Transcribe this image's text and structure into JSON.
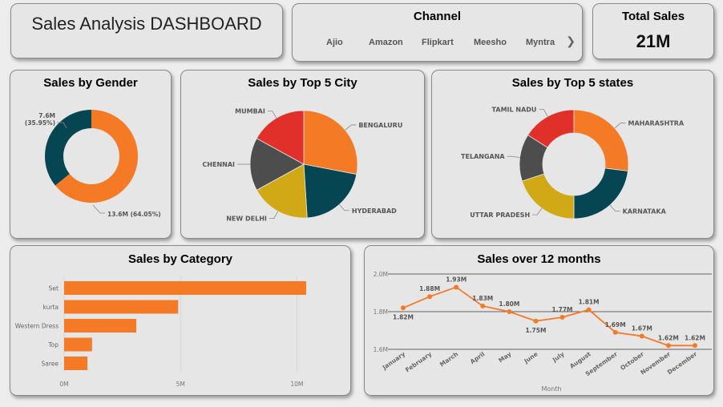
{
  "header": {
    "title": "Sales Analysis DASHBOARD"
  },
  "channel": {
    "title": "Channel",
    "items": [
      "Ajio",
      "Amazon",
      "Flipkart",
      "Meesho",
      "Myntra"
    ],
    "next_icon": "chevron-right-icon"
  },
  "total_sales": {
    "title": "Total Sales",
    "value": "21M"
  },
  "colors": {
    "orange": "#f47a25",
    "teal": "#064652",
    "red": "#e1302a",
    "gray": "#4d4d4d",
    "mustard": "#d1a917"
  },
  "gender": {
    "title": "Sales by Gender",
    "chart_data": {
      "type": "pie",
      "donut": true,
      "slices": [
        {
          "value": 13.6,
          "color": "#f47a25",
          "label": "13.6M (64.05%)"
        },
        {
          "value": 7.6,
          "color": "#064652",
          "label": "7.6M (35.95%)"
        }
      ]
    }
  },
  "city": {
    "title": "Sales by Top 5 City",
    "chart_data": {
      "type": "pie",
      "slices": [
        {
          "name": "BENGALURU",
          "value": 28,
          "color": "#f47a25"
        },
        {
          "name": "HYDERABAD",
          "value": 21,
          "color": "#064652"
        },
        {
          "name": "NEW DELHI",
          "value": 18,
          "color": "#d1a917"
        },
        {
          "name": "CHENNAI",
          "value": 16,
          "color": "#4d4d4d"
        },
        {
          "name": "MUMBAI",
          "value": 17,
          "color": "#e1302a"
        }
      ]
    }
  },
  "states": {
    "title": "Sales by Top 5 states",
    "chart_data": {
      "type": "pie",
      "donut": true,
      "slices": [
        {
          "name": "MAHARASHTRA",
          "value": 27,
          "color": "#f47a25"
        },
        {
          "name": "KARNATAKA",
          "value": 23,
          "color": "#064652"
        },
        {
          "name": "UTTAR PRADESH",
          "value": 20,
          "color": "#d1a917"
        },
        {
          "name": "TELANGANA",
          "value": 14,
          "color": "#4d4d4d"
        },
        {
          "name": "TAMIL NADU",
          "value": 16,
          "color": "#e1302a"
        }
      ]
    }
  },
  "category": {
    "title": "Sales by Category",
    "chart_data": {
      "type": "bar",
      "orientation": "horizontal",
      "categories": [
        "Set",
        "kurta",
        "Western Dress",
        "Top",
        "Saree"
      ],
      "values": [
        10.4,
        4.9,
        3.1,
        1.2,
        1.0
      ],
      "xlim": [
        0,
        10.4
      ],
      "ticks": [
        "0M",
        "5M",
        "10M"
      ],
      "tick_values": [
        0,
        5,
        10
      ],
      "color": "#f47a25"
    }
  },
  "monthly": {
    "title": "Sales over 12 months",
    "chart_data": {
      "type": "line",
      "x": [
        "January",
        "February",
        "March",
        "April",
        "May",
        "June",
        "July",
        "August",
        "September",
        "October",
        "November",
        "December"
      ],
      "y": [
        1.82,
        1.88,
        1.93,
        1.83,
        1.8,
        1.75,
        1.77,
        1.81,
        1.69,
        1.67,
        1.62,
        1.62
      ],
      "labels": [
        "1.82M",
        "1.88M",
        "1.93M",
        "1.83M",
        "1.80M",
        "1.75M",
        "1.77M",
        "1.81M",
        "1.69M",
        "1.67M",
        "1.62M",
        "1.62M"
      ],
      "label_position": [
        "below",
        "above",
        "above",
        "above",
        "above",
        "below",
        "above",
        "above",
        "above",
        "above",
        "above",
        "above"
      ],
      "ylim": [
        1.6,
        2.0
      ],
      "y_ticks": [
        "1.6M",
        "1.8M",
        "2.0M"
      ],
      "y_tick_values": [
        1.6,
        1.8,
        2.0
      ],
      "xlabel": "Month",
      "color": "#f47a25",
      "grid": true
    }
  }
}
